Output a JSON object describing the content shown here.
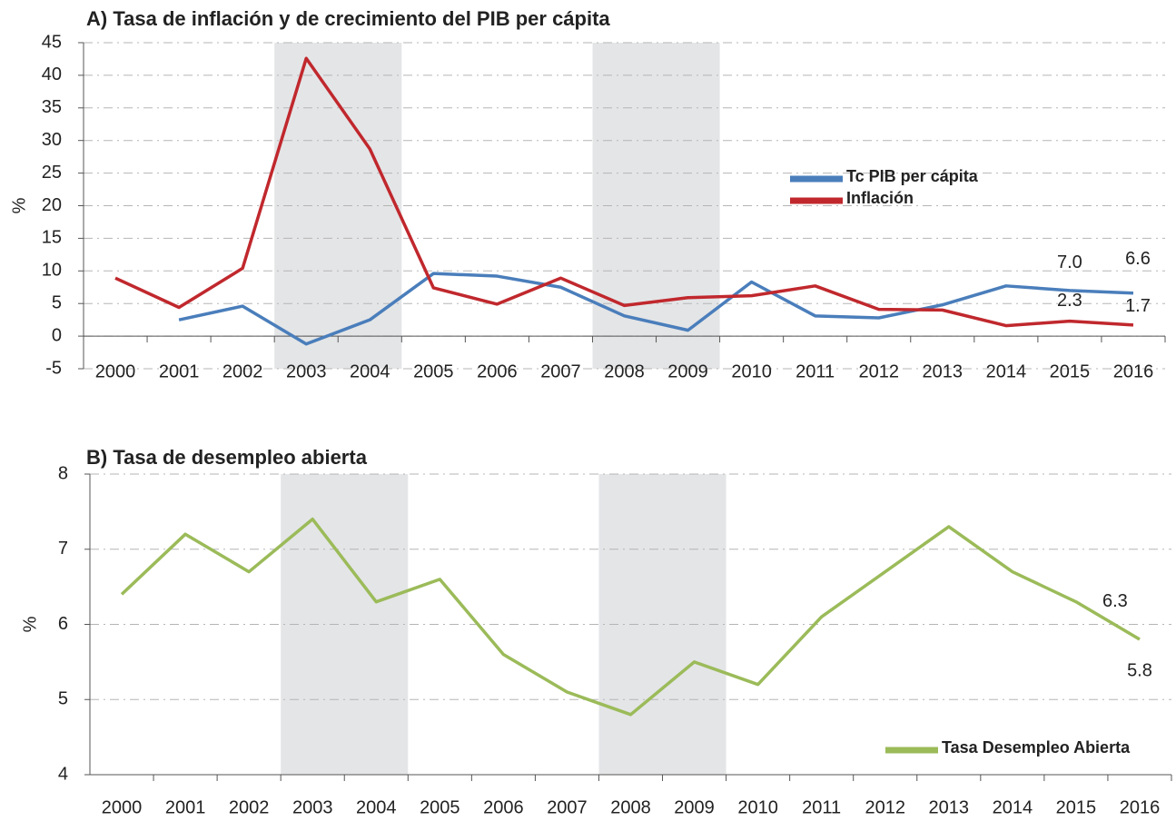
{
  "chart_data": [
    {
      "type": "line",
      "title": "A) Tasa de inflación y de crecimiento del PIB per cápita",
      "y_label": "%",
      "categories": [
        "2000",
        "2001",
        "2002",
        "2003",
        "2004",
        "2005",
        "2006",
        "2007",
        "2008",
        "2009",
        "2010",
        "2011",
        "2012",
        "2013",
        "2014",
        "2015",
        "2016"
      ],
      "series": [
        {
          "name": "Tc PIB per cápita",
          "color": "#4a7ebb",
          "values": [
            null,
            2.5,
            4.6,
            -1.2,
            2.5,
            9.6,
            9.2,
            7.5,
            3.1,
            0.9,
            8.3,
            3.1,
            2.8,
            4.8,
            7.7,
            7.0,
            6.6
          ],
          "value_labels": [
            null,
            null,
            null,
            null,
            null,
            null,
            null,
            null,
            null,
            null,
            null,
            null,
            null,
            null,
            null,
            "7.0",
            "6.6"
          ]
        },
        {
          "name": "Inflación",
          "color": "#c0282d",
          "values": [
            8.9,
            4.4,
            10.4,
            42.6,
            28.7,
            7.4,
            4.9,
            8.9,
            4.7,
            5.9,
            6.2,
            7.7,
            4.1,
            4.0,
            1.6,
            2.3,
            1.7
          ],
          "value_labels": [
            null,
            null,
            null,
            null,
            null,
            null,
            null,
            null,
            null,
            null,
            null,
            null,
            null,
            null,
            null,
            "2.3",
            "1.7"
          ]
        }
      ],
      "ylim": [
        -5,
        45
      ],
      "yticks": [
        -5,
        0,
        5,
        10,
        15,
        20,
        25,
        30,
        35,
        40,
        45
      ],
      "grid": true,
      "shaded": [
        [
          "2003",
          "2004"
        ],
        [
          "2008",
          "2009"
        ]
      ],
      "legend": "right"
    },
    {
      "type": "line",
      "title": "B) Tasa de desempleo abierta",
      "y_label": "%",
      "categories": [
        "2000",
        "2001",
        "2002",
        "2003",
        "2004",
        "2005",
        "2006",
        "2007",
        "2008",
        "2009",
        "2010",
        "2011",
        "2012",
        "2013",
        "2014",
        "2015",
        "2016"
      ],
      "series": [
        {
          "name": "Tasa Desempleo Abierta",
          "color": "#9bbb59",
          "values": [
            6.4,
            7.2,
            6.7,
            7.4,
            6.3,
            6.6,
            5.6,
            5.1,
            4.8,
            5.5,
            5.2,
            6.1,
            6.7,
            7.3,
            6.7,
            6.3,
            5.8
          ],
          "value_labels": [
            null,
            null,
            null,
            null,
            null,
            null,
            null,
            null,
            null,
            null,
            null,
            null,
            null,
            null,
            null,
            "6.3",
            "5.8"
          ]
        }
      ],
      "ylim": [
        4,
        8
      ],
      "yticks": [
        4,
        5,
        6,
        7,
        8
      ],
      "grid": true,
      "shaded": [
        [
          "2003",
          "2004"
        ],
        [
          "2008",
          "2009"
        ]
      ],
      "legend": "bottom-right"
    }
  ]
}
